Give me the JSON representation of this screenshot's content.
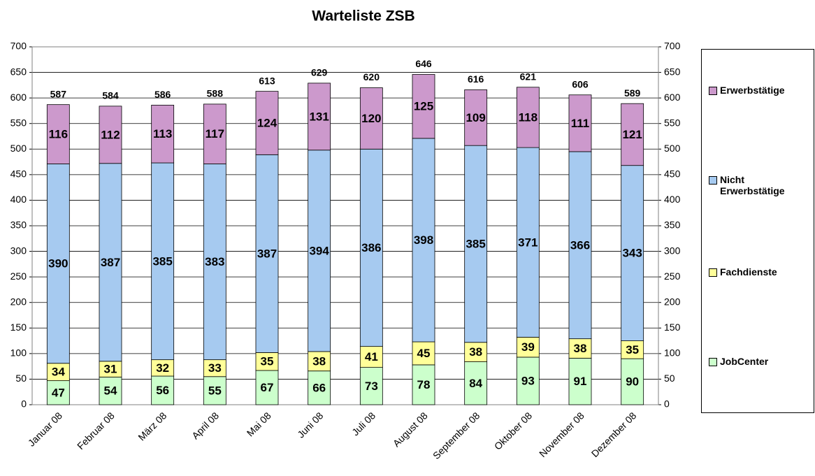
{
  "chart_data": {
    "type": "stacked_bar",
    "title": "Warteliste ZSB",
    "categories": [
      "Januar 08",
      "Februar 08",
      "März 08",
      "April 08",
      "Mai 08",
      "Juni 08",
      "Juli 08",
      "August 08",
      "September 08",
      "Oktober 08",
      "November 08",
      "Dezember 08"
    ],
    "series": [
      {
        "name": "JobCenter",
        "color": "#ccffcc",
        "values": [
          47,
          54,
          56,
          55,
          67,
          66,
          73,
          78,
          84,
          93,
          91,
          90
        ]
      },
      {
        "name": "Fachdienste",
        "color": "#ffff99",
        "values": [
          34,
          31,
          32,
          33,
          35,
          38,
          41,
          45,
          38,
          39,
          38,
          35
        ]
      },
      {
        "name": "Nicht Erwerbstätige",
        "color": "#a6caf0",
        "values": [
          390,
          387,
          385,
          383,
          387,
          394,
          386,
          398,
          385,
          371,
          366,
          343
        ]
      },
      {
        "name": "Erwerbstätige",
        "color": "#cc99cc",
        "values": [
          116,
          112,
          113,
          117,
          124,
          131,
          120,
          125,
          109,
          118,
          111,
          121
        ]
      }
    ],
    "totals": [
      587,
      584,
      586,
      588,
      613,
      629,
      620,
      646,
      616,
      621,
      606,
      589
    ],
    "ylim": [
      0,
      700
    ],
    "yticks": [
      0,
      50,
      100,
      150,
      200,
      250,
      300,
      350,
      400,
      450,
      500,
      550,
      600,
      650,
      700
    ],
    "y2lim": [
      0,
      700
    ],
    "y2ticks": [
      0,
      50,
      100,
      150,
      200,
      250,
      300,
      350,
      400,
      450,
      500,
      550,
      600,
      650,
      700
    ],
    "grid": true,
    "legend": "right"
  }
}
